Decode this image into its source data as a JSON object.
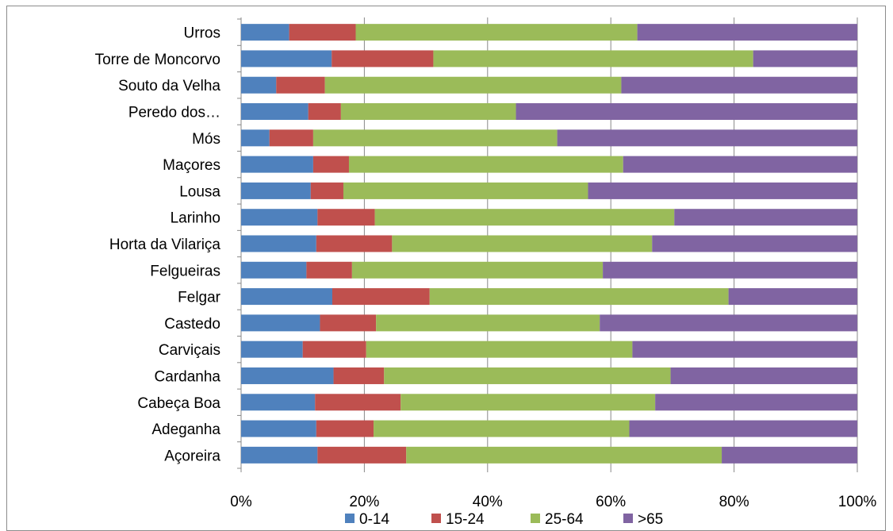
{
  "chart_data": {
    "type": "bar",
    "orientation": "horizontal",
    "stacked": "percent",
    "categories": [
      "Açoreira",
      "Adeganha",
      "Cabeça Boa",
      "Cardanha",
      "Carviçais",
      "Castedo",
      "Felgar",
      "Felgueiras",
      "Horta da Vilariça",
      "Larinho",
      "Lousa",
      "Maçores",
      "Mós",
      "Peredo dos…",
      "Souto da Velha",
      "Torre de Moncorvo",
      "Urros"
    ],
    "series": [
      {
        "name": "0-14",
        "color": "#4f81bd",
        "values": [
          12.4,
          12.2,
          12.0,
          15.0,
          10.0,
          12.8,
          14.8,
          10.6,
          12.2,
          12.4,
          11.3,
          11.7,
          4.6,
          10.9,
          5.7,
          14.7,
          7.8
        ]
      },
      {
        "name": "15-24",
        "color": "#c0504d",
        "values": [
          14.4,
          9.3,
          13.9,
          8.2,
          10.3,
          9.1,
          15.8,
          7.4,
          12.3,
          9.3,
          5.3,
          5.8,
          7.1,
          5.3,
          7.9,
          16.5,
          10.8
        ]
      },
      {
        "name": "25-64",
        "color": "#9bbb59",
        "values": [
          51.2,
          41.5,
          41.3,
          46.5,
          43.2,
          36.3,
          48.5,
          40.7,
          42.2,
          48.6,
          39.7,
          44.5,
          39.6,
          28.4,
          48.1,
          51.9,
          45.7
        ]
      },
      {
        "name": ">65",
        "color": "#8064a2",
        "values": [
          22.0,
          37.0,
          32.8,
          30.3,
          36.5,
          41.8,
          20.9,
          41.3,
          33.3,
          29.7,
          43.7,
          38.0,
          48.7,
          55.4,
          38.3,
          16.9,
          35.7
        ]
      }
    ],
    "x_ticks": [
      "0%",
      "20%",
      "40%",
      "60%",
      "80%",
      "100%"
    ],
    "xlim": [
      0,
      100
    ],
    "grid": true,
    "legend": "bottom"
  }
}
